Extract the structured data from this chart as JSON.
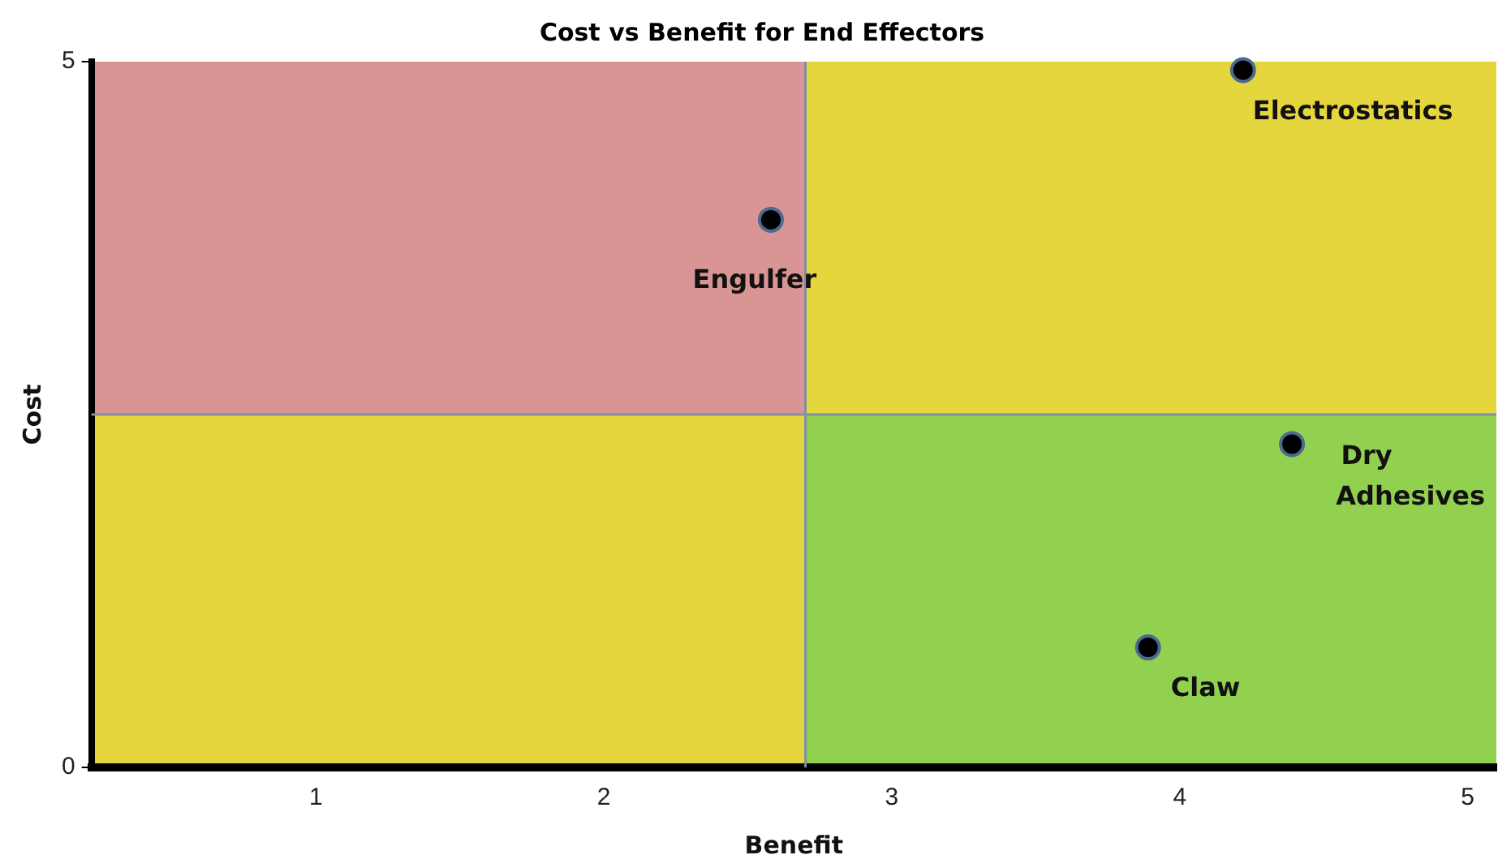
{
  "chart_data": {
    "type": "scatter",
    "title": "Cost vs Benefit for End Effectors",
    "xlabel": "Benefit",
    "ylabel": "Cost",
    "x": [
      4.22,
      2.58,
      4.39,
      3.89
    ],
    "values": [
      4.94,
      3.88,
      2.29,
      0.85
    ],
    "color": "#000000",
    "marker": "circle",
    "xlim": [
      0.22,
      5.1
    ],
    "xticks": [
      1,
      2,
      3,
      4,
      5
    ],
    "ylim": [
      0,
      5
    ],
    "yticks": [
      0,
      5
    ],
    "grid": false,
    "legend": false,
    "ref_lines": [
      {
        "axis": "x",
        "value": 2.7,
        "color": "#7f8fa6"
      },
      {
        "axis": "y",
        "value": 2.5,
        "color": "#7f8fa6"
      }
    ],
    "annotations": [
      {
        "text": "Electrostatics",
        "x": 4.22,
        "y": 4.94
      },
      {
        "text": "Engulfer",
        "x": 2.58,
        "y": 3.88
      },
      {
        "text": "Dry Adhesives",
        "x": 4.39,
        "y": 2.29
      },
      {
        "text": "Claw",
        "x": 3.89,
        "y": 0.85
      }
    ]
  }
}
